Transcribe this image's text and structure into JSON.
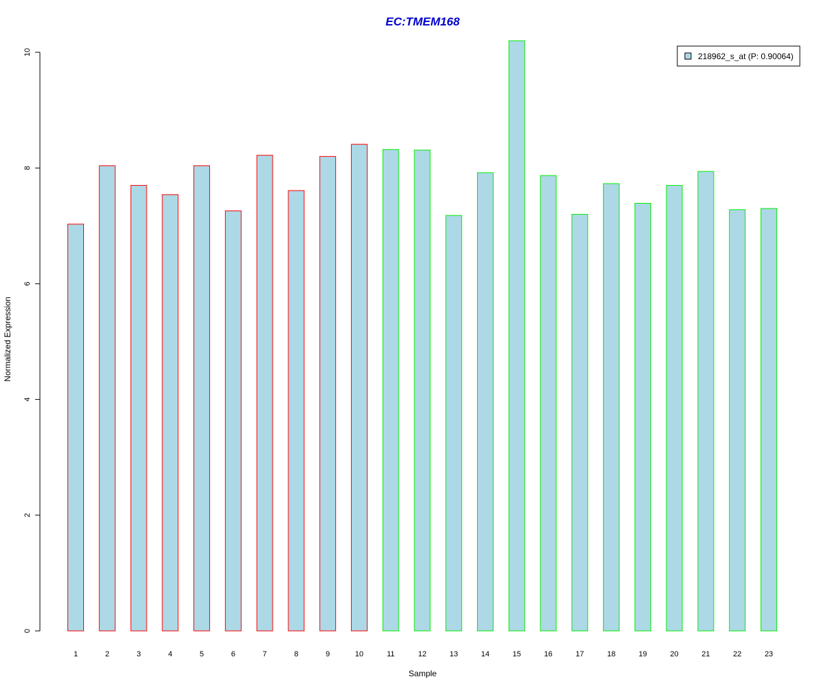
{
  "chart_data": {
    "type": "bar",
    "title": "EC:TMEM168",
    "xlabel": "Sample",
    "ylabel": "Normalized Expression",
    "ylim": [
      0,
      10.2
    ],
    "yticks": [
      0,
      2,
      4,
      6,
      8,
      10
    ],
    "categories": [
      "1",
      "2",
      "3",
      "4",
      "5",
      "6",
      "7",
      "8",
      "9",
      "10",
      "11",
      "12",
      "13",
      "14",
      "15",
      "16",
      "17",
      "18",
      "19",
      "20",
      "21",
      "22",
      "23"
    ],
    "series": [
      {
        "name": "218962_s_at (P: 0.90064)",
        "values": [
          7.03,
          8.04,
          7.7,
          7.54,
          8.04,
          7.26,
          8.22,
          7.61,
          8.2,
          8.41,
          8.32,
          8.31,
          7.18,
          7.92,
          10.2,
          7.87,
          7.2,
          7.73,
          7.39,
          7.7,
          7.94,
          7.28,
          7.3
        ]
      }
    ],
    "groups": [
      "red",
      "red",
      "red",
      "red",
      "red",
      "red",
      "red",
      "red",
      "red",
      "red",
      "green",
      "green",
      "green",
      "green",
      "green",
      "green",
      "green",
      "green",
      "green",
      "green",
      "green",
      "green",
      "green"
    ],
    "legend": {
      "label": "218962_s_at (P: 0.90064)",
      "position": "top-right"
    },
    "colors": {
      "fill": "#add8e6",
      "red": "#ff0000",
      "green": "#00ee00",
      "title": "#0000cc"
    },
    "grid": false
  }
}
